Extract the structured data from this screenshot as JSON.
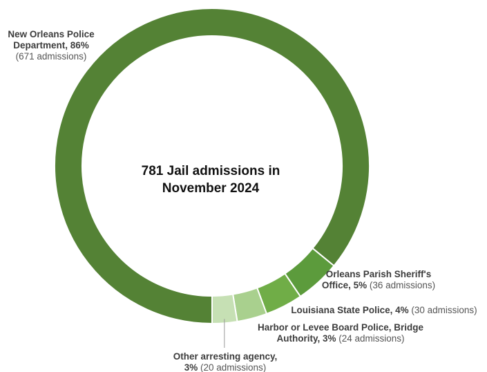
{
  "chart_data": {
    "type": "pie",
    "title_lines": [
      "781 Jail admissions in",
      "November 2024"
    ],
    "slices": [
      {
        "name": "New Orleans Police Department",
        "percent": 86,
        "admissions": 671,
        "color": "#548235",
        "label_lines": [
          [
            {
              "text": "New Orleans Police",
              "bold": true
            }
          ],
          [
            {
              "text": "Department, 86%",
              "bold": true
            }
          ],
          [
            {
              "text": "(671 admissions)",
              "bold": false
            }
          ]
        ]
      },
      {
        "name": "Orleans Parish Sheriff's Office",
        "percent": 5,
        "admissions": 36,
        "color": "#5c9b3c",
        "label_lines": [
          [
            {
              "text": "Orleans Parish Sheriff's",
              "bold": true
            }
          ],
          [
            {
              "text": "Office, 5%",
              "bold": true
            },
            {
              "text": " (36 admissions)",
              "bold": false
            }
          ]
        ]
      },
      {
        "name": "Louisiana State Police",
        "percent": 4,
        "admissions": 30,
        "color": "#70ad47",
        "label_lines": [
          [
            {
              "text": "Louisiana State Police, 4%",
              "bold": true
            },
            {
              "text": " (30 admissions)",
              "bold": false
            }
          ]
        ]
      },
      {
        "name": "Harbor or Levee Board Police, Bridge Authority",
        "percent": 3,
        "admissions": 24,
        "color": "#a9d08e",
        "label_lines": [
          [
            {
              "text": "Harbor or Levee Board Police, Bridge",
              "bold": true
            }
          ],
          [
            {
              "text": "Authority, 3%",
              "bold": true
            },
            {
              "text": " (24 admissions)",
              "bold": false
            }
          ]
        ]
      },
      {
        "name": "Other arresting agency",
        "percent": 3,
        "admissions": 20,
        "color": "#c6e0b4",
        "label_lines": [
          [
            {
              "text": "Other arresting agency,",
              "bold": true
            }
          ],
          [
            {
              "text": "3%",
              "bold": true
            },
            {
              "text": " (20 admissions)",
              "bold": false
            }
          ]
        ]
      }
    ]
  }
}
